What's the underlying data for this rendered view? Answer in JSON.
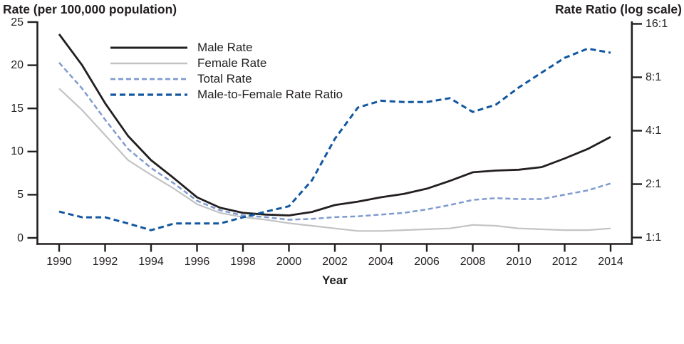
{
  "chart_data": {
    "type": "line",
    "title": "",
    "xlabel": "Year",
    "x": [
      1990,
      1991,
      1992,
      1993,
      1994,
      1995,
      1996,
      1997,
      1998,
      1999,
      2000,
      2001,
      2002,
      2003,
      2004,
      2005,
      2006,
      2007,
      2008,
      2009,
      2010,
      2011,
      2012,
      2013,
      2014
    ],
    "x_ticks": [
      1990,
      1992,
      1994,
      1996,
      1998,
      2000,
      2002,
      2004,
      2006,
      2008,
      2010,
      2012,
      2014
    ],
    "grid": false,
    "legend_position": "inside-top-left",
    "left_axis": {
      "title": "Rate (per 100,000 population)",
      "ticks": [
        0,
        5,
        10,
        15,
        20,
        25
      ],
      "range": [
        0,
        25
      ]
    },
    "right_axis": {
      "title": "Rate Ratio (log scale)",
      "scale": "log2",
      "range": [
        1,
        16
      ],
      "ticks": [
        {
          "value": 1,
          "label": "1:1"
        },
        {
          "value": 2,
          "label": "2:1"
        },
        {
          "value": 4,
          "label": "4:1"
        },
        {
          "value": 8,
          "label": "8:1"
        },
        {
          "value": 16,
          "label": "16:1"
        }
      ]
    },
    "series": [
      {
        "name": "Male Rate",
        "slug": "male-rate",
        "axis": "left",
        "line": "solid",
        "color": "#231f20",
        "width": 2.8,
        "dash": "",
        "values": [
          23.6,
          20.0,
          15.6,
          11.8,
          9.0,
          6.9,
          4.7,
          3.5,
          2.9,
          2.7,
          2.6,
          3.0,
          3.8,
          4.2,
          4.7,
          5.1,
          5.7,
          6.6,
          7.6,
          7.8,
          7.9,
          8.2,
          9.2,
          10.3,
          11.7
        ]
      },
      {
        "name": "Female Rate",
        "slug": "female-rate",
        "axis": "left",
        "line": "solid",
        "color": "#c2c3c5",
        "width": 2.2,
        "dash": "",
        "values": [
          17.3,
          14.8,
          11.9,
          9.0,
          7.3,
          5.7,
          3.9,
          2.9,
          2.4,
          2.1,
          1.7,
          1.4,
          1.1,
          0.8,
          0.8,
          0.9,
          1.0,
          1.1,
          1.5,
          1.4,
          1.1,
          1.0,
          0.9,
          0.9,
          1.1
        ]
      },
      {
        "name": "Total Rate",
        "slug": "total-rate",
        "axis": "left",
        "line": "dashed",
        "color": "#7f9bce",
        "width": 2.5,
        "dash": "7 4",
        "values": [
          20.3,
          17.3,
          13.7,
          10.3,
          8.1,
          6.3,
          4.3,
          3.2,
          2.6,
          2.4,
          2.1,
          2.2,
          2.4,
          2.5,
          2.7,
          2.9,
          3.3,
          3.8,
          4.4,
          4.6,
          4.5,
          4.5,
          5.0,
          5.5,
          6.3
        ]
      },
      {
        "name": "Male-to-Female Rate Ratio",
        "slug": "male-to-female-rate-ratio",
        "axis": "right",
        "line": "dashed",
        "color": "#1257a0",
        "width": 3,
        "dash": "8 5",
        "values": [
          1.4,
          1.3,
          1.3,
          1.2,
          1.1,
          1.2,
          1.2,
          1.2,
          1.3,
          1.4,
          1.5,
          2.1,
          3.6,
          5.4,
          5.9,
          5.8,
          5.8,
          6.1,
          5.1,
          5.6,
          7.0,
          8.5,
          10.3,
          11.6,
          11.0
        ]
      }
    ]
  }
}
